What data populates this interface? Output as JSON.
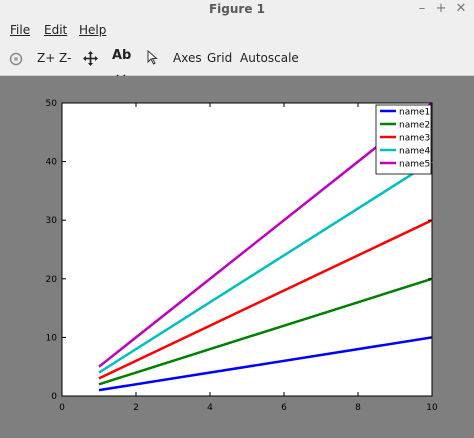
{
  "window": {
    "title": "Figure 1",
    "minimize": "–",
    "maximize": "+",
    "close": "✕"
  },
  "menu": {
    "file": "File",
    "edit": "Edit",
    "help": "Help"
  },
  "toolbar": {
    "zoom_in": "Z+",
    "zoom_out": "Z-",
    "text_tool": "Ab",
    "axes": "Axes",
    "grid": "Grid",
    "autoscale": "Autoscale"
  },
  "chart_data": {
    "type": "line",
    "x": [
      1,
      10
    ],
    "series": [
      {
        "name": "name1",
        "values": [
          1,
          10
        ],
        "color": "#0000ff"
      },
      {
        "name": "name2",
        "values": [
          2,
          20
        ],
        "color": "#008000"
      },
      {
        "name": "name3",
        "values": [
          3,
          30
        ],
        "color": "#ff0000"
      },
      {
        "name": "name4",
        "values": [
          4,
          40
        ],
        "color": "#00bfbf"
      },
      {
        "name": "name5",
        "values": [
          5,
          50
        ],
        "color": "#bf00bf"
      }
    ],
    "xlim": [
      0,
      10
    ],
    "ylim": [
      0,
      50
    ],
    "xticks": [
      "0",
      "2",
      "4",
      "6",
      "8",
      "10"
    ],
    "yticks": [
      "0",
      "10",
      "20",
      "30",
      "40",
      "50"
    ],
    "grid": false,
    "legend": "top-right"
  }
}
